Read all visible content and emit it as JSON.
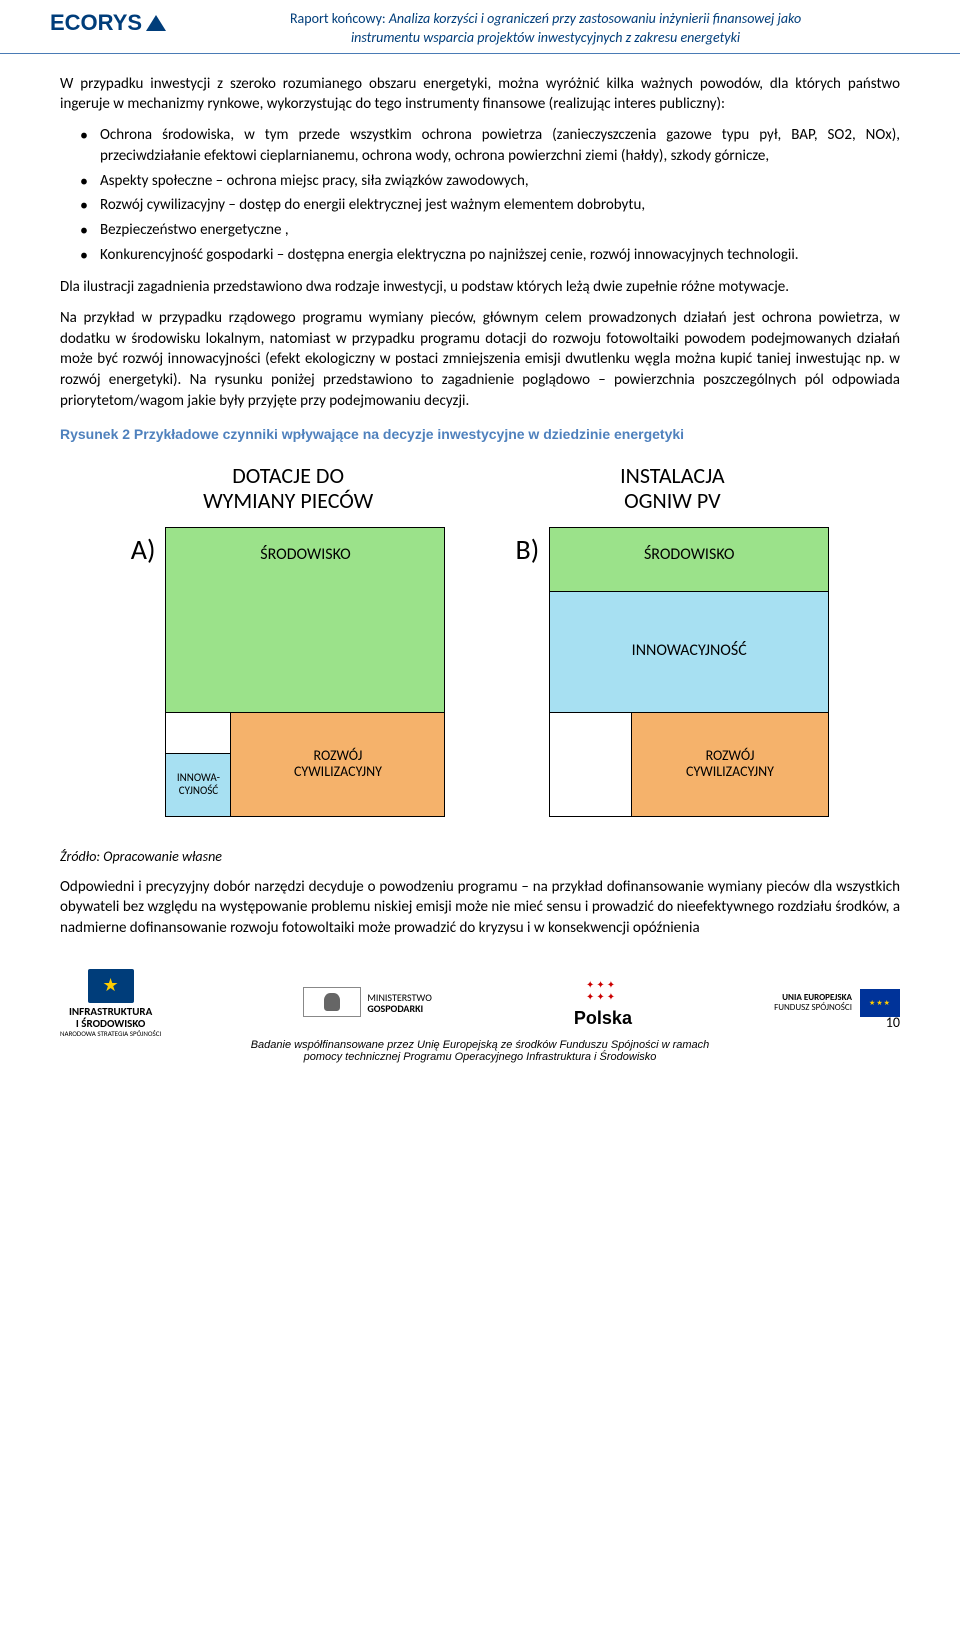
{
  "header": {
    "logo_text": "ECORYS",
    "title_prefix": "Raport końcowy: ",
    "title_italic1": "Analiza korzyści i ograniczeń przy zastosowaniu inżynierii finansowej jako",
    "title_italic2": "instrumentu wsparcia projektów inwestycyjnych z zakresu energetyki"
  },
  "body": {
    "p1": "W przypadku inwestycji z szeroko rozumianego obszaru energetyki, można wyróżnić kilka ważnych powodów, dla których państwo ingeruje w mechanizmy rynkowe, wykorzystując do tego instrumenty finansowe (realizując interes publiczny):",
    "bullets": [
      "Ochrona środowiska, w tym przede wszystkim ochrona powietrza (zanieczyszczenia gazowe typu pył, BAP, SO2, NOx), przeciwdziałanie efektowi cieplarnianemu, ochrona wody, ochrona powierzchni ziemi (hałdy), szkody górnicze,",
      "Aspekty społeczne – ochrona miejsc pracy, siła związków zawodowych,",
      "Rozwój cywilizacyjny – dostęp do energii elektrycznej jest ważnym elementem dobrobytu,",
      "Bezpieczeństwo energetyczne ,",
      "Konkurencyjność gospodarki – dostępna energia elektryczna po najniższej cenie, rozwój innowacyjnych technologii."
    ],
    "p2": "Dla ilustracji zagadnienia przedstawiono dwa rodzaje inwestycji, u podstaw których leżą dwie zupełnie różne motywacje.",
    "p3": "Na przykład w przypadku rządowego programu wymiany pieców, głównym celem prowadzonych działań jest ochrona powietrza, w dodatku w środowisku lokalnym, natomiast w przypadku programu dotacji do rozwoju fotowoltaiki powodem podejmowanych działań może być rozwój innowacyjności (efekt ekologiczny w postaci zmniejszenia emisji dwutlenku węgla można kupić taniej inwestując np. w rozwój energetyki).  Na rysunku poniżej przedstawiono to zagadnienie poglądowo – powierzchnia poszczególnych pól odpowiada priorytetom/wagom jakie były przyjęte przy podejmowaniu decyzji.",
    "figure_caption": "Rysunek 2 Przykładowe czynniki wpływające na decyzje inwestycyjne w dziedzinie energetyki",
    "source": "Źródło: Opracowanie własne",
    "p4": "Odpowiedni i precyzyjny dobór narzędzi decyduje o powodzeniu programu – na przykład dofinansowanie wymiany pieców dla wszystkich obywateli bez względu na występowanie problemu niskiej emisji może nie mieć sensu i prowadzić do nieefektywnego rozdziału środków, a nadmierne dofinansowanie rozwoju fotowoltaiki może prowadzić do kryzysu i w konsekwencji opóźnienia"
  },
  "diagram": {
    "col_a": {
      "title_l1": "DOTACJE DO",
      "title_l2": "WYMIANY PIECÓW",
      "letter": "A)"
    },
    "col_b": {
      "title_l1": "INSTALACJA",
      "title_l2": "OGNIW PV",
      "letter": "B)"
    },
    "labels": {
      "srodowisko": "ŚRODOWISKO",
      "rozwoj_l1": "ROZWÓJ",
      "rozwoj_l2": "CYWILIZACYJNY",
      "innowa_l1": "INNOWA-",
      "innowa_l2": "CYJNOŚĆ",
      "innowacyjnosc": "INNOWACYJNOŚĆ"
    },
    "colors": {
      "environment": "#9be28a",
      "civilization": "#f5b26b",
      "innovation": "#a7e0f2",
      "border": "#000000"
    }
  },
  "footer": {
    "logo1_l1": "INFRASTRUKTURA",
    "logo1_l2": "I ŚRODOWISKO",
    "logo1_l3": "NARODOWA STRATEGIA SPÓJNOŚCI",
    "logo2_l1": "MINISTERSTWO",
    "logo2_l2": "GOSPODARKI",
    "logo3": "Polska",
    "logo4_l1": "UNIA EUROPEJSKA",
    "logo4_l2": "FUNDUSZ SPÓJNOŚCI",
    "text_l1": "Badanie współfinansowane przez Unię Europejską ze środków Funduszu Spójności w ramach",
    "text_l2": "pomocy technicznej Programu Operacyjnego Infrastruktura i Środowisko",
    "page": "10"
  }
}
